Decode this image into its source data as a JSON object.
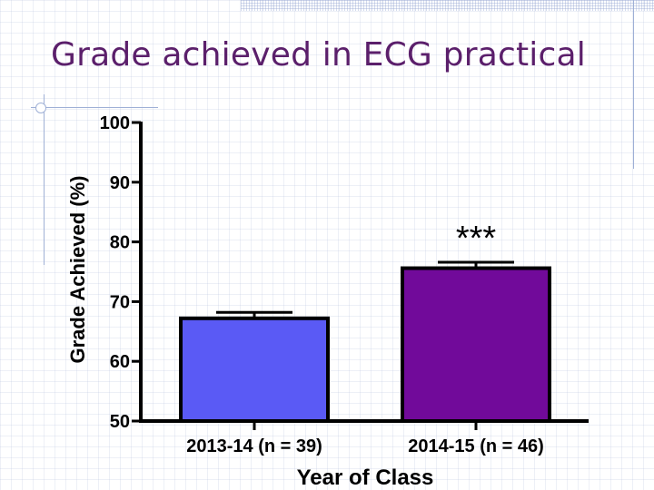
{
  "slide": {
    "title": "Grade achieved in ECG practical"
  },
  "chart_data": {
    "type": "bar",
    "title": "",
    "xlabel": "Year of Class",
    "ylabel": "Grade Achieved (%)",
    "ylim": [
      50,
      100
    ],
    "yticks": [
      50,
      60,
      70,
      80,
      90,
      100
    ],
    "categories": [
      "2013-14 (n = 39)",
      "2014-15 (n = 46)"
    ],
    "values": [
      67.2,
      75.6
    ],
    "error_upper": [
      68.2,
      76.6
    ],
    "bar_colors": [
      "#5a5af5",
      "#710a9a"
    ],
    "annotations": [
      {
        "category_index": 1,
        "text": "***"
      }
    ],
    "grid": false,
    "legend": "none"
  }
}
